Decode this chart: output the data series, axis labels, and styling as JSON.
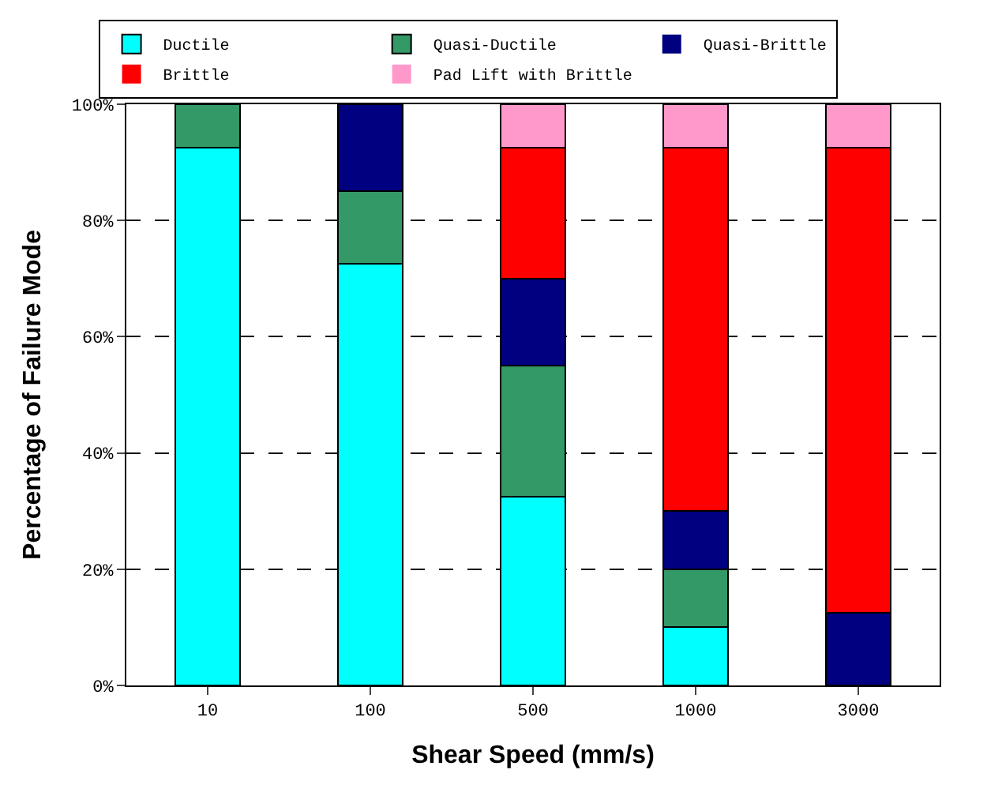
{
  "chart_data": {
    "type": "bar",
    "stacked": true,
    "xlabel": "Shear Speed (mm/s)",
    "ylabel": "Percentage of Failure Mode",
    "categories": [
      "10",
      "100",
      "500",
      "1000",
      "3000"
    ],
    "series": [
      {
        "name": "Ductile",
        "color": "#00ffff",
        "values": [
          92.5,
          72.5,
          32.5,
          10,
          0
        ]
      },
      {
        "name": "Quasi-Ductile",
        "color": "#339966",
        "values": [
          7.5,
          12.5,
          22.5,
          10,
          0
        ]
      },
      {
        "name": "Quasi-Brittle",
        "color": "#000080",
        "values": [
          0,
          15,
          15,
          10,
          12.5
        ]
      },
      {
        "name": "Brittle",
        "color": "#ff0000",
        "values": [
          0,
          0,
          22.5,
          62.5,
          80
        ]
      },
      {
        "name": "Pad Lift with Brittle",
        "color": "#ff99cc",
        "values": [
          0,
          0,
          7.5,
          7.5,
          7.5
        ]
      }
    ],
    "ylim": [
      0,
      100
    ],
    "yticks": [
      {
        "value": 0,
        "label": "0%"
      },
      {
        "value": 20,
        "label": "20%"
      },
      {
        "value": 40,
        "label": "40%"
      },
      {
        "value": 60,
        "label": "60%"
      },
      {
        "value": 80,
        "label": "80%"
      },
      {
        "value": 100,
        "label": "100%"
      }
    ],
    "grid": "y",
    "legend": "top"
  }
}
